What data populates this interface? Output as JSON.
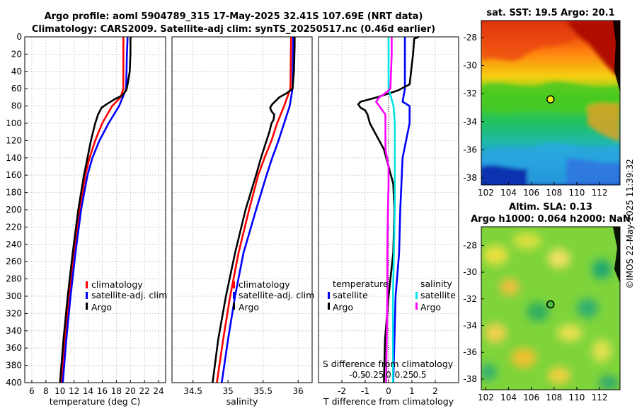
{
  "header": {
    "title_line1": "Argo profile: aoml 5904789_315 17-May-2025 32.41S 107.69E (NRT data)",
    "title_line2": "Climatology: CARS2009. Satellite-adj clim: synTS_20250517.nc (0.46d earlier)"
  },
  "credit": "©IMOS 22-May-2025 11:39:32",
  "colors": {
    "climatology": "#ff0000",
    "satellite": "#0000ff",
    "argo": "#000000",
    "temp_sat_diff": "#0000ff",
    "temp_argo_diff": "#000000",
    "sal_sat_diff": "#00e5e5",
    "sal_argo_diff": "#ff00ff"
  },
  "chart_data": [
    {
      "id": "temperature",
      "type": "line",
      "xlabel": "temperature (deg C)",
      "ylabel": "",
      "xlim": [
        5,
        25
      ],
      "ylim": [
        400,
        0
      ],
      "xticks": [
        6,
        8,
        10,
        12,
        14,
        16,
        18,
        20,
        22,
        24
      ],
      "yticks": [
        0,
        20,
        40,
        60,
        80,
        100,
        120,
        140,
        160,
        180,
        200,
        220,
        240,
        260,
        280,
        300,
        320,
        340,
        360,
        380,
        400
      ],
      "grid": true,
      "legend": [
        "climatology",
        "satellite-adj. clim",
        "Argo"
      ],
      "series": [
        {
          "name": "climatology",
          "color": "#ff0000",
          "depth": [
            0,
            60,
            70,
            80,
            100,
            120,
            140,
            160,
            200,
            250,
            300,
            350,
            400
          ],
          "values": [
            19.0,
            19.0,
            18.6,
            17.4,
            16.0,
            15.0,
            14.2,
            13.6,
            12.8,
            12.0,
            11.3,
            10.7,
            10.2
          ]
        },
        {
          "name": "satellite-adj. clim",
          "color": "#0000ff",
          "depth": [
            0,
            20,
            60,
            80,
            100,
            120,
            140,
            160,
            200,
            250,
            300,
            350,
            400
          ],
          "values": [
            19.6,
            19.5,
            19.4,
            18.4,
            16.9,
            15.6,
            14.6,
            13.9,
            13.0,
            12.2,
            11.5,
            10.9,
            10.4
          ]
        },
        {
          "name": "Argo",
          "color": "#000000",
          "depth": [
            0,
            2,
            20,
            40,
            55,
            62,
            68,
            72,
            78,
            82,
            90,
            100,
            110,
            120,
            140,
            160,
            200,
            250,
            300,
            350,
            400
          ],
          "values": [
            20.1,
            20.0,
            20.0,
            19.9,
            19.6,
            19.4,
            18.8,
            17.8,
            16.6,
            15.9,
            15.4,
            15.0,
            14.7,
            14.4,
            13.9,
            13.4,
            12.6,
            11.8,
            11.1,
            10.5,
            10.0
          ]
        }
      ]
    },
    {
      "id": "salinity",
      "type": "line",
      "xlabel": "salinity",
      "ylabel": "",
      "xlim": [
        34.2,
        36.2
      ],
      "ylim": [
        400,
        0
      ],
      "xticks": [
        34.5,
        35,
        35.5,
        36
      ],
      "xticklabels": [
        "34.5",
        "35",
        "35.5",
        "36"
      ],
      "grid": true,
      "legend": [
        "climatology",
        "satellite-adj. clim",
        "Argo"
      ],
      "series": [
        {
          "name": "climatology",
          "color": "#ff0000",
          "depth": [
            0,
            60,
            80,
            100,
            120,
            140,
            160,
            200,
            250,
            300,
            350,
            400
          ],
          "values": [
            35.9,
            35.89,
            35.8,
            35.7,
            35.62,
            35.52,
            35.43,
            35.3,
            35.15,
            35.03,
            34.93,
            34.84
          ]
        },
        {
          "name": "satellite-adj. clim",
          "color": "#0000ff",
          "depth": [
            0,
            60,
            80,
            100,
            120,
            140,
            160,
            200,
            250,
            300,
            350,
            400
          ],
          "values": [
            35.93,
            35.92,
            35.88,
            35.8,
            35.72,
            35.63,
            35.55,
            35.4,
            35.22,
            35.1,
            35.0,
            34.91
          ]
        },
        {
          "name": "Argo",
          "color": "#000000",
          "depth": [
            0,
            10,
            40,
            60,
            65,
            70,
            78,
            82,
            86,
            90,
            96,
            100,
            110,
            120,
            140,
            160,
            200,
            250,
            300,
            350,
            400
          ],
          "values": [
            35.95,
            35.95,
            35.94,
            35.92,
            35.84,
            35.73,
            35.63,
            35.6,
            35.62,
            35.66,
            35.65,
            35.62,
            35.59,
            35.55,
            35.47,
            35.4,
            35.25,
            35.1,
            34.97,
            34.86,
            34.78
          ]
        }
      ]
    },
    {
      "id": "differences",
      "type": "line",
      "xlabel": "T difference from climatology",
      "xlabel_top": "S difference from climatology",
      "xlim": [
        -3,
        3
      ],
      "ylim": [
        400,
        0
      ],
      "xticks": [
        -2,
        -1,
        0,
        1,
        2
      ],
      "xticklabels": [
        "-2",
        "-1",
        "0",
        "1",
        "2"
      ],
      "sticks": [
        -0.5,
        -0.25,
        0,
        0.25,
        0.5
      ],
      "sticklabels": [
        "-0.5",
        "-0.25",
        "0",
        "0.25",
        "0.5"
      ],
      "slim": [
        -1.125,
        1.125
      ],
      "grid": true,
      "legend_temperature": {
        "title": "temperature",
        "items": [
          "satellite",
          "Argo"
        ]
      },
      "legend_salinity": {
        "title": "salinity",
        "items": [
          "satellite",
          "Argo"
        ]
      },
      "series": [
        {
          "name": "temperature satellite",
          "color": "#0000ff",
          "unit": "T",
          "depth": [
            0,
            60,
            75,
            80,
            100,
            140,
            200,
            250,
            300,
            350,
            400
          ],
          "values": [
            0.7,
            0.7,
            0.6,
            0.9,
            0.9,
            0.6,
            0.5,
            0.45,
            0.3,
            0.25,
            0.2
          ]
        },
        {
          "name": "temperature Argo",
          "color": "#000000",
          "unit": "T",
          "depth": [
            0,
            2,
            20,
            55,
            62,
            70,
            75,
            78,
            82,
            85,
            90,
            100,
            110,
            120,
            130,
            150,
            170,
            200,
            250,
            300,
            350,
            400
          ],
          "values": [
            1.3,
            1.1,
            1.05,
            0.9,
            0.4,
            -0.5,
            -1.2,
            -1.3,
            -1.2,
            -1.0,
            -0.9,
            -0.8,
            -0.6,
            -0.4,
            -0.2,
            0.0,
            0.2,
            0.25,
            0.2,
            0.0,
            -0.15,
            -0.2
          ]
        },
        {
          "name": "salinity satellite",
          "color": "#00e5e5",
          "unit": "S",
          "depth": [
            0,
            60,
            80,
            100,
            150,
            200,
            300,
            400
          ],
          "values": [
            0.0,
            0.0,
            0.08,
            0.1,
            0.1,
            0.1,
            0.07,
            0.07
          ]
        },
        {
          "name": "salinity Argo",
          "color": "#ff00ff",
          "unit": "S",
          "depth": [
            0,
            20,
            60,
            65,
            70,
            75,
            80,
            90,
            100,
            110,
            130,
            150,
            170,
            200,
            250,
            300,
            350,
            400
          ],
          "values": [
            0.05,
            0.05,
            0.03,
            -0.05,
            -0.15,
            -0.2,
            -0.15,
            -0.05,
            -0.05,
            -0.05,
            -0.05,
            0.0,
            0.0,
            -0.01,
            -0.02,
            -0.02,
            -0.03,
            -0.04
          ]
        }
      ]
    },
    {
      "id": "sst_map",
      "type": "heatmap",
      "title": "sat. SST: 19.5  Argo: 20.1",
      "xlim": [
        101.6,
        113.8
      ],
      "ylim": [
        -38.5,
        -26.8
      ],
      "xticks": [
        102,
        104,
        106,
        108,
        110,
        112
      ],
      "yticks": [
        -28,
        -30,
        -32,
        -34,
        -36,
        -38
      ],
      "marker": {
        "lon": 107.69,
        "lat": -32.41
      }
    },
    {
      "id": "sla_map",
      "type": "heatmap",
      "title_line1": "Altim. SLA: 0.13",
      "title_line2": "Argo h1000: 0.064 h2000: NaN",
      "xlim": [
        101.6,
        113.8
      ],
      "ylim": [
        -38.8,
        -26.6
      ],
      "xticks": [
        102,
        104,
        106,
        108,
        110,
        112
      ],
      "yticks": [
        -28,
        -30,
        -32,
        -34,
        -36,
        -38
      ],
      "marker": {
        "lon": 107.69,
        "lat": -32.41
      }
    }
  ]
}
